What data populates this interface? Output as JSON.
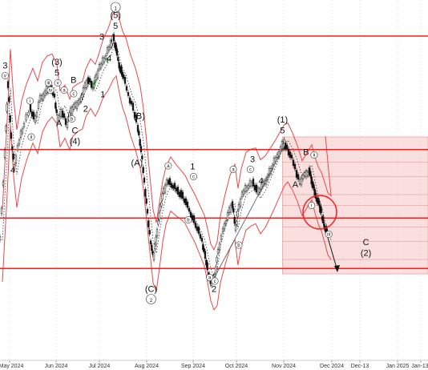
{
  "colors": {
    "level_line": "#ff1a1a",
    "envelope": "#e84a4a",
    "ma_dotted": "#333333",
    "candle": "#111111",
    "projection_fill": "#f4b9b9",
    "projection_line": "#e88a8a",
    "grid": "#c8c8c8",
    "up_candle_accent": "#2a9a2a"
  },
  "chart_data": {
    "type": "candlestick",
    "x_ticks": [
      "May 2024",
      "Jun 2024",
      "Jul 2024",
      "Aug 2024",
      "Sep 2024",
      "Oct 2024",
      "Nov 2024",
      "Dec 2024",
      "Dec-13",
      "Jan 2025",
      "Jan-13"
    ],
    "y_range": [
      0,
      100
    ],
    "grid": "vertical",
    "horizontal_levels": [
      90,
      58.5,
      39.5,
      25.5
    ],
    "projection_zone": {
      "x_start": 0.66,
      "y_top": 62,
      "y_bottom": 24,
      "sublevels": [
        55,
        51,
        46,
        43,
        37,
        33,
        28
      ]
    },
    "wave_labels": [
      {
        "text": "3",
        "x": 0.012,
        "y": 81
      },
      {
        "text": "4",
        "x": 0.03,
        "y": 52
      },
      {
        "text": "(3)",
        "x": 0.133,
        "y": 82
      },
      {
        "text": "5",
        "x": 0.133,
        "y": 79
      },
      {
        "text": "B",
        "x": 0.172,
        "y": 77
      },
      {
        "text": "A",
        "x": 0.138,
        "y": 65
      },
      {
        "text": "C",
        "x": 0.175,
        "y": 63
      },
      {
        "text": "(4)",
        "x": 0.175,
        "y": 60
      },
      {
        "text": "2",
        "x": 0.2,
        "y": 69
      },
      {
        "text": "1",
        "x": 0.24,
        "y": 73
      },
      {
        "text": "3",
        "x": 0.238,
        "y": 89
      },
      {
        "text": "4",
        "x": 0.255,
        "y": 83
      },
      {
        "text": "(5)",
        "x": 0.27,
        "y": 95
      },
      {
        "text": "5",
        "x": 0.27,
        "y": 92
      },
      {
        "text": "(B)",
        "x": 0.325,
        "y": 67
      },
      {
        "text": "(A)",
        "x": 0.32,
        "y": 54
      },
      {
        "text": "(C)",
        "x": 0.353,
        "y": 19
      },
      {
        "text": "1",
        "x": 0.45,
        "y": 53
      },
      {
        "text": "2",
        "x": 0.5,
        "y": 19
      },
      {
        "text": "3",
        "x": 0.59,
        "y": 55
      },
      {
        "text": "4",
        "x": 0.61,
        "y": 49
      },
      {
        "text": "(1)",
        "x": 0.66,
        "y": 66
      },
      {
        "text": "5",
        "x": 0.66,
        "y": 63
      },
      {
        "text": "A",
        "x": 0.69,
        "y": 48
      },
      {
        "text": "B",
        "x": 0.715,
        "y": 57
      },
      {
        "text": "C",
        "x": 0.855,
        "y": 32
      },
      {
        "text": "(2)",
        "x": 0.855,
        "y": 29
      }
    ],
    "circled_labels": [
      {
        "text": "v",
        "x": 0.012,
        "y": 79
      },
      {
        "text": "ii",
        "x": 0.073,
        "y": 62
      },
      {
        "text": "i",
        "x": 0.07,
        "y": 72
      },
      {
        "text": "iv",
        "x": 0.118,
        "y": 75
      },
      {
        "text": "iii",
        "x": 0.113,
        "y": 77
      },
      {
        "text": "v",
        "x": 0.135,
        "y": 77
      },
      {
        "text": "a",
        "x": 0.15,
        "y": 75
      },
      {
        "text": "b",
        "x": 0.168,
        "y": 67
      },
      {
        "text": "c",
        "x": 0.172,
        "y": 74
      },
      {
        "text": "1",
        "x": 0.27,
        "y": 98
      },
      {
        "text": "a",
        "x": 0.393,
        "y": 54
      },
      {
        "text": "b",
        "x": 0.44,
        "y": 39
      },
      {
        "text": "c",
        "x": 0.452,
        "y": 51
      },
      {
        "text": "a",
        "x": 0.49,
        "y": 23
      },
      {
        "text": "c",
        "x": 0.502,
        "y": 22
      },
      {
        "text": "a",
        "x": 0.545,
        "y": 53
      },
      {
        "text": "b",
        "x": 0.558,
        "y": 32
      },
      {
        "text": "c",
        "x": 0.585,
        "y": 53
      },
      {
        "text": "i",
        "x": 0.728,
        "y": 43
      },
      {
        "text": "ii",
        "x": 0.734,
        "y": 57
      },
      {
        "text": "iii",
        "x": 0.768,
        "y": 35
      },
      {
        "text": "2",
        "x": 0.353,
        "y": 17
      }
    ]
  }
}
